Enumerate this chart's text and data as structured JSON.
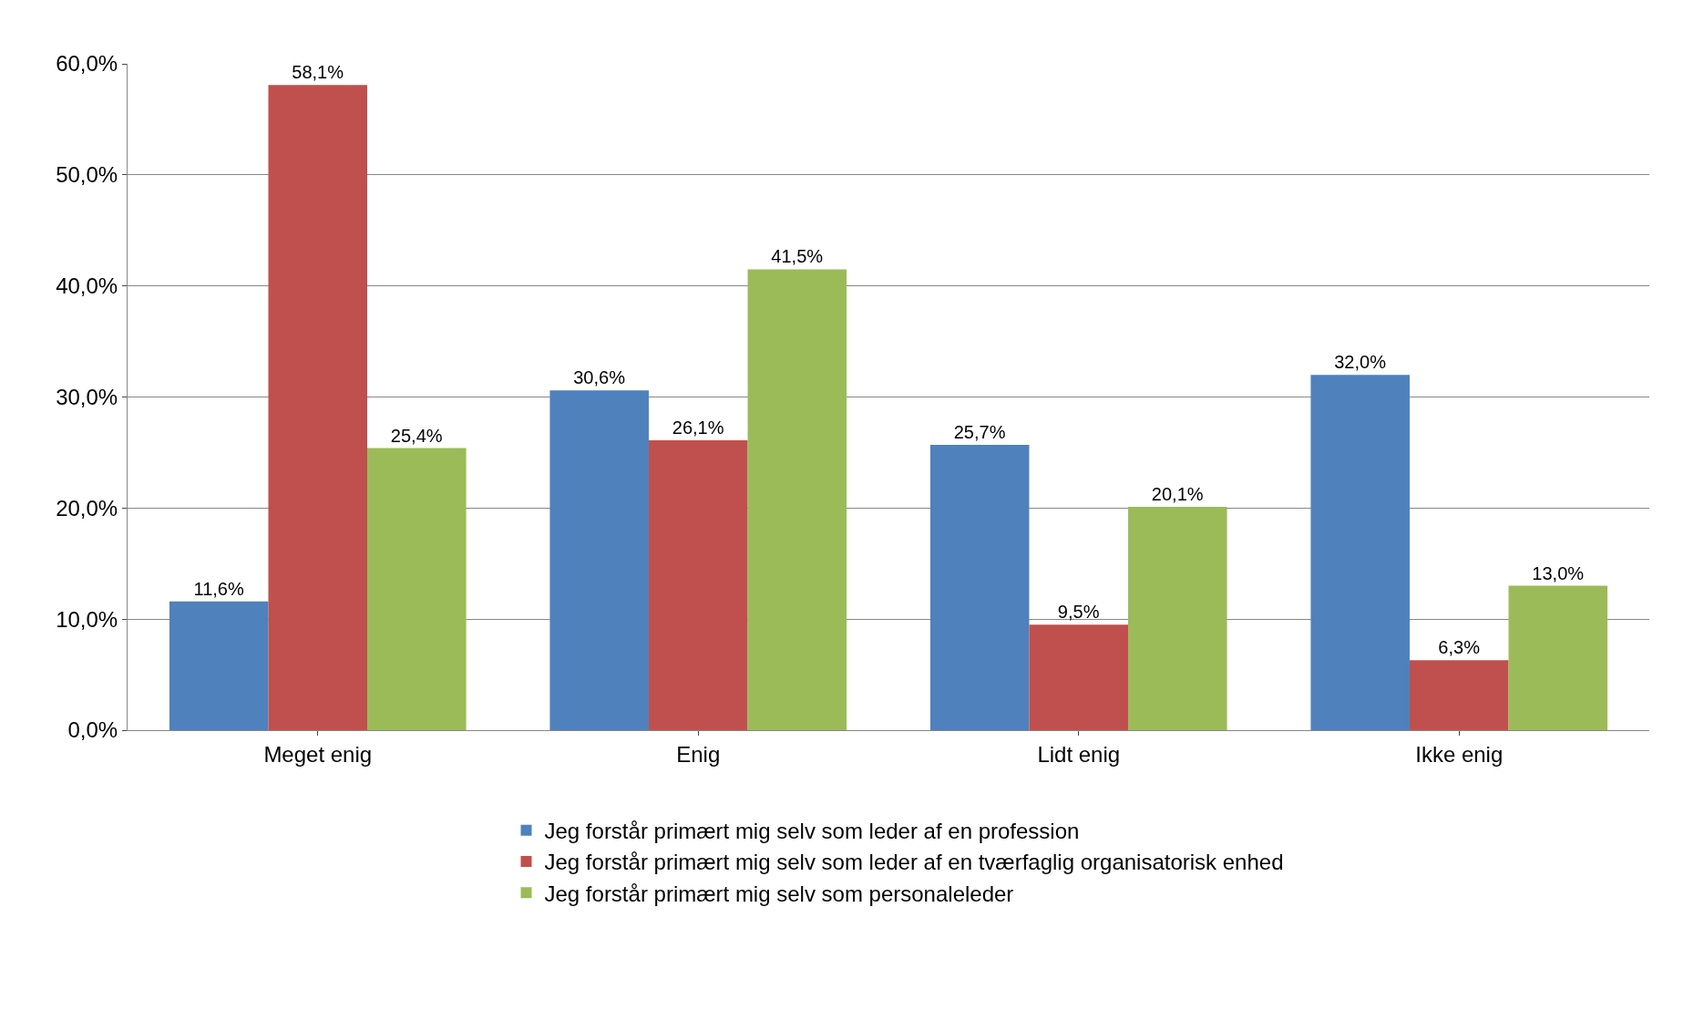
{
  "chart_data": {
    "type": "bar",
    "categories": [
      "Meget enig",
      "Enig",
      "Lidt enig",
      "Ikke enig"
    ],
    "series": [
      {
        "name": "Jeg forstår primært mig selv som leder af en profession",
        "color": "#4f81bd",
        "values": [
          11.6,
          30.6,
          25.7,
          32.0
        ],
        "value_labels": [
          "11,6%",
          "30,6%",
          "25,7%",
          "32,0%"
        ]
      },
      {
        "name": "Jeg forstår primært mig selv som leder af en tværfaglig organisatorisk enhed",
        "color": "#c0504d",
        "values": [
          58.1,
          26.1,
          9.5,
          6.3
        ],
        "value_labels": [
          "58,1%",
          "26,1%",
          "9,5%",
          "6,3%"
        ]
      },
      {
        "name": "Jeg forstår primært mig selv som personaleleder",
        "color": "#9bbb59",
        "values": [
          25.4,
          41.5,
          20.1,
          13.0
        ],
        "value_labels": [
          "25,4%",
          "41,5%",
          "20,1%",
          "13,0%"
        ]
      }
    ],
    "ylim": [
      0,
      60
    ],
    "yticks": [
      {
        "value": 0,
        "label": "0,0%"
      },
      {
        "value": 10,
        "label": "10,0%"
      },
      {
        "value": 20,
        "label": "20,0%"
      },
      {
        "value": 30,
        "label": "30,0%"
      },
      {
        "value": 40,
        "label": "40,0%"
      },
      {
        "value": 50,
        "label": "50,0%"
      },
      {
        "value": 60,
        "label": "60,0%"
      }
    ],
    "grid": "y",
    "legend": "bottom"
  }
}
